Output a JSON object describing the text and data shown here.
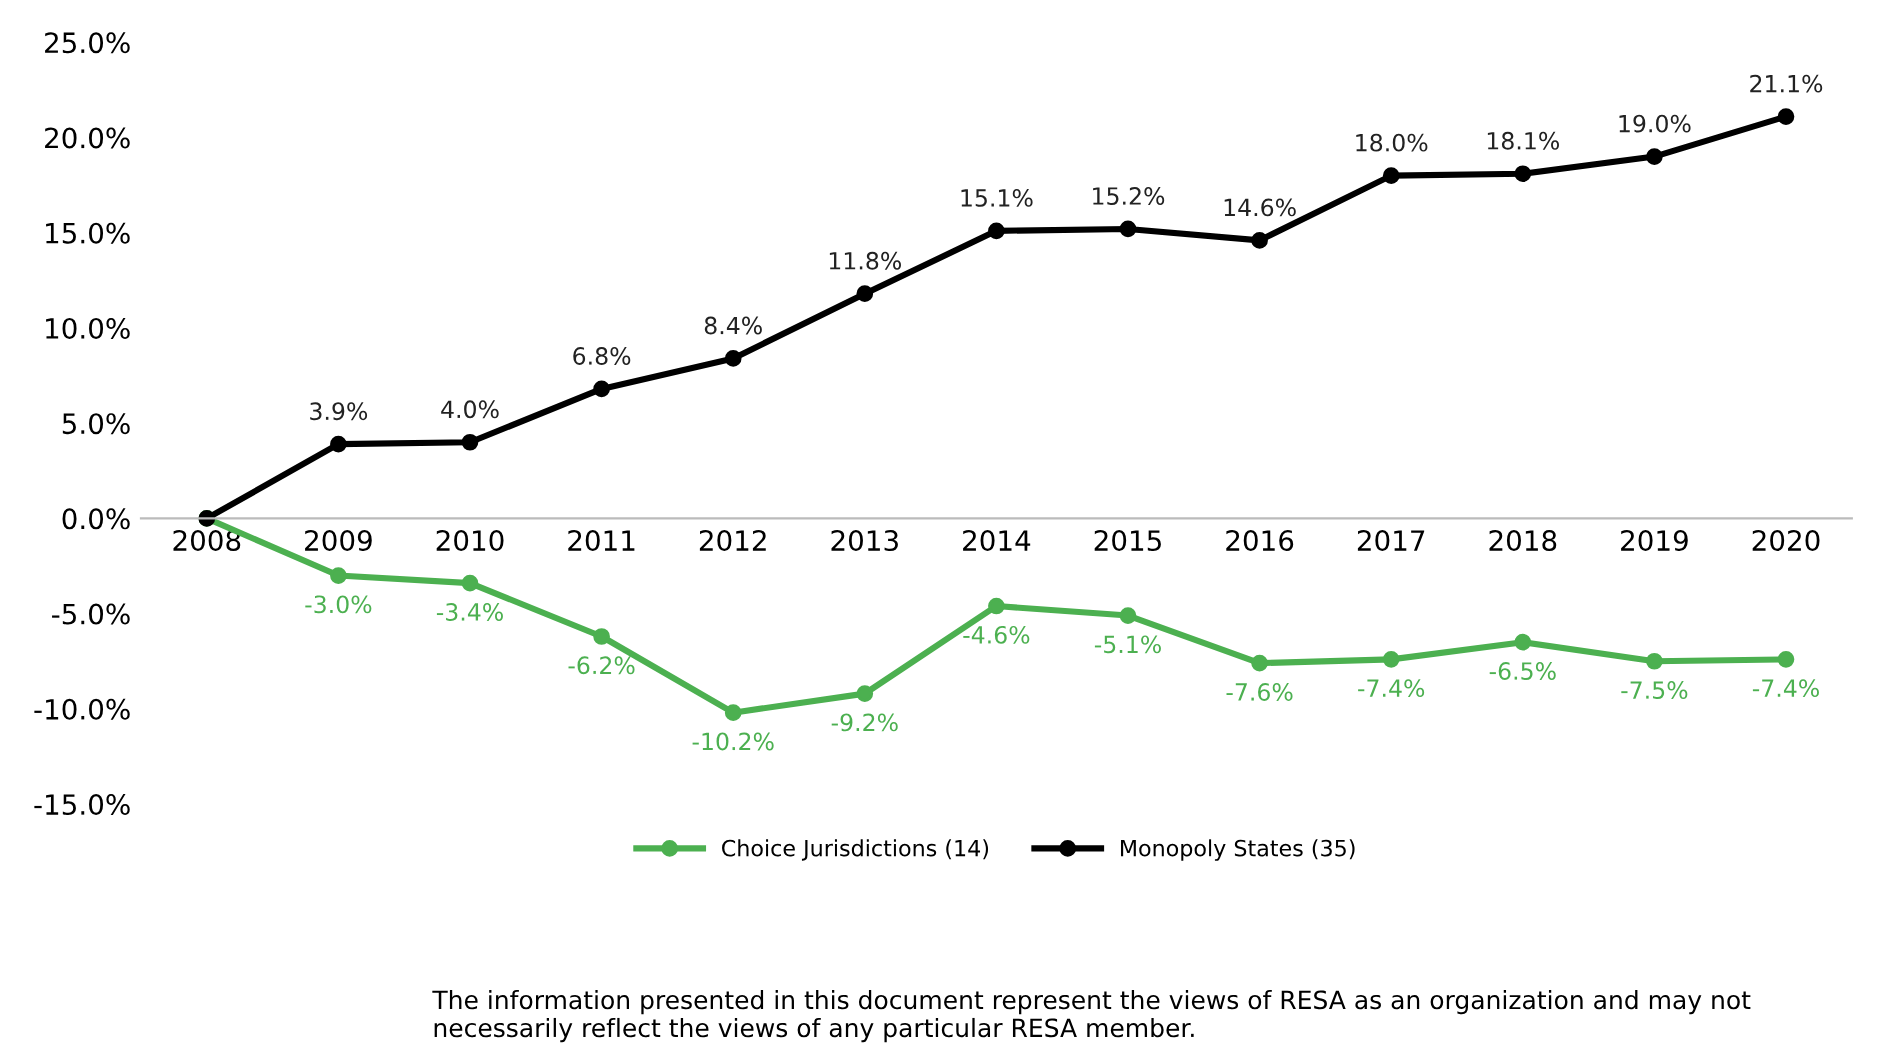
{
  "chart_data": {
    "type": "line",
    "categories": [
      "2008",
      "2009",
      "2010",
      "2011",
      "2012",
      "2013",
      "2014",
      "2015",
      "2016",
      "2017",
      "2018",
      "2019",
      "2020"
    ],
    "series": [
      {
        "name": "Choice Jurisdictions (14)",
        "color": "#4cb050",
        "values": [
          0,
          -3.0,
          -3.4,
          -6.2,
          -10.2,
          -9.2,
          -4.6,
          -5.1,
          -7.6,
          -7.4,
          -6.5,
          -7.5,
          -7.4
        ],
        "value_labels": [
          null,
          "-3.0%",
          "-3.4%",
          "-6.2%",
          "-10.2%",
          "-9.2%",
          "-4.6%",
          "-5.1%",
          "-7.6%",
          "-7.4%",
          "-6.5%",
          "-7.5%",
          "-7.4%"
        ]
      },
      {
        "name": "Monopoly States (35)",
        "color": "#000000",
        "values": [
          0,
          3.9,
          4.0,
          6.8,
          8.4,
          11.8,
          15.1,
          15.2,
          14.6,
          18.0,
          18.1,
          19.0,
          21.1
        ],
        "value_labels": [
          null,
          "3.9%",
          "4.0%",
          "6.8%",
          "8.4%",
          "11.8%",
          "15.1%",
          "15.2%",
          "14.6%",
          "18.0%",
          "18.1%",
          "19.0%",
          "21.1%"
        ]
      }
    ],
    "ylim": [
      -15,
      25
    ],
    "yticks": [
      {
        "value": -15,
        "label": "-15.0%"
      },
      {
        "value": -10,
        "label": "-10.0%"
      },
      {
        "value": -5,
        "label": "-5.0%"
      },
      {
        "value": 0,
        "label": "0.0%"
      },
      {
        "value": 5,
        "label": "5.0%"
      },
      {
        "value": 10,
        "label": "10.0%"
      },
      {
        "value": 15,
        "label": "15.0%"
      },
      {
        "value": 20,
        "label": "20.0%"
      },
      {
        "value": 25,
        "label": "25.0%"
      }
    ],
    "grid": false,
    "legend": "bottom",
    "marker": "circle",
    "line_style": "solid",
    "annotations": [
      "The information presented in this document represent the views of RESA as an organization and may not necessarily reflect the views of any particular RESA member."
    ]
  }
}
